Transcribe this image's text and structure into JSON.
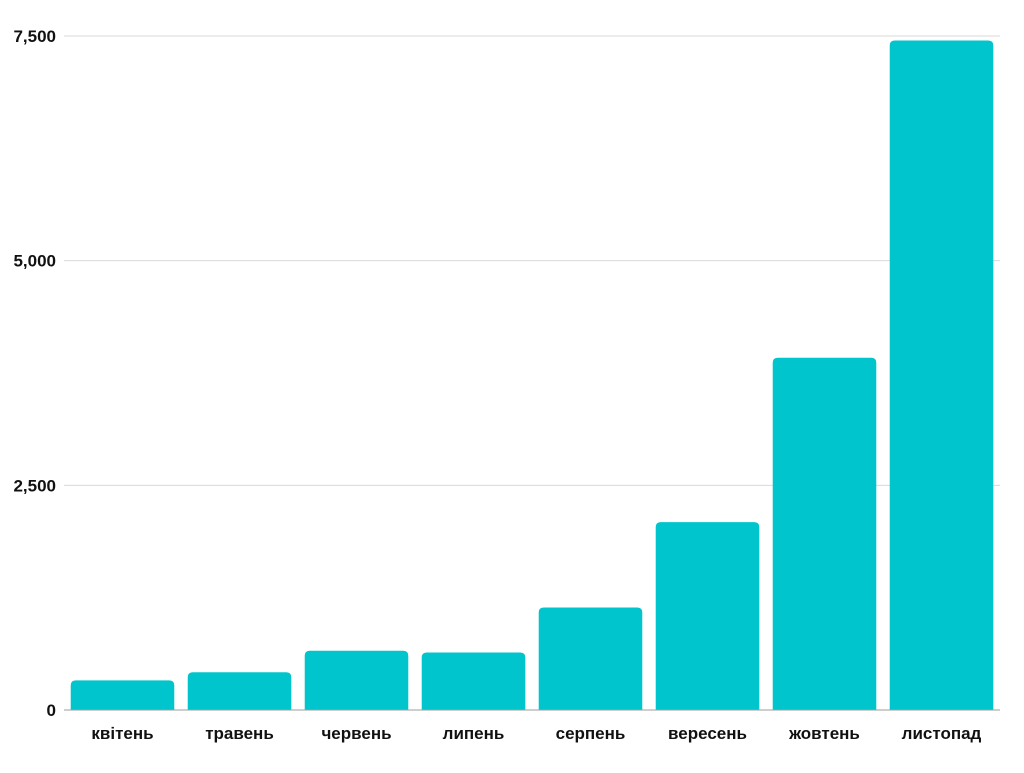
{
  "chart_data": {
    "type": "bar",
    "title": "",
    "xlabel": "",
    "ylabel": "",
    "categories": [
      "квітень",
      "травень",
      "червень",
      "липень",
      "серпень",
      "вересень",
      "жовтень",
      "листопад"
    ],
    "values": [
      330,
      420,
      660,
      640,
      1140,
      2090,
      3920,
      7450
    ],
    "ylim": [
      0,
      7500
    ],
    "yticks": [
      0,
      2500,
      5000,
      7500
    ],
    "ytick_labels": [
      "0",
      "2,500",
      "5,000",
      "7,500"
    ],
    "grid": true,
    "legend": "none",
    "bar_color": "#00C5CC"
  }
}
